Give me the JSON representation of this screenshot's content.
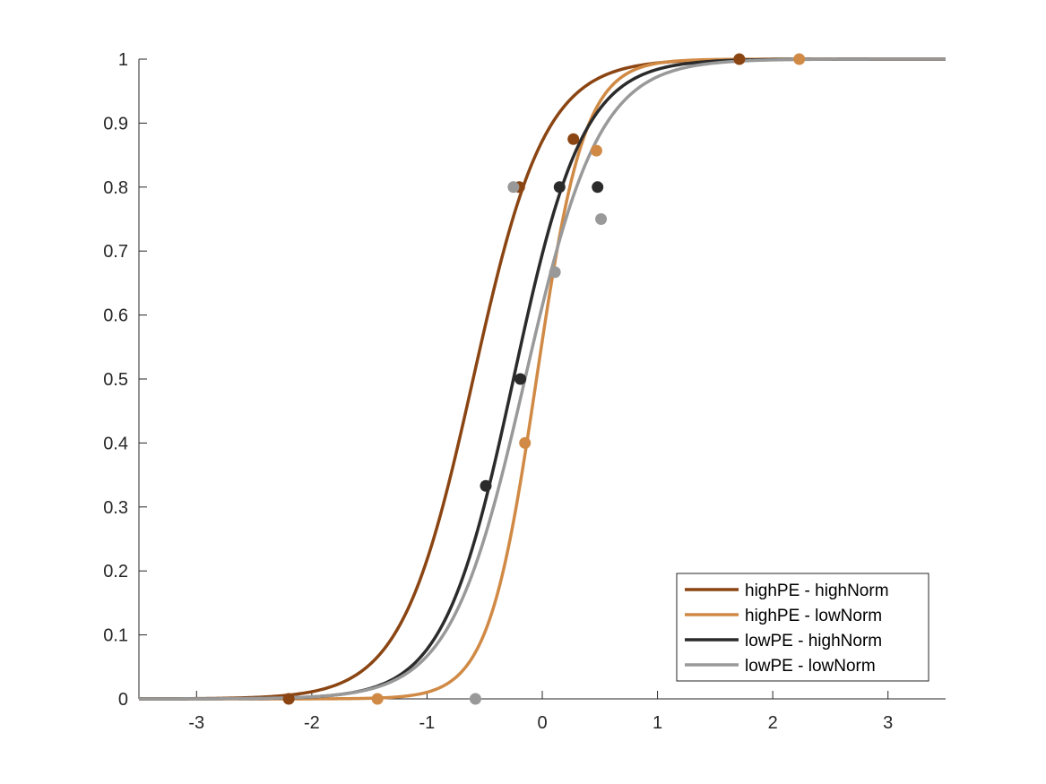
{
  "chart_data": {
    "type": "line",
    "title": "",
    "xlabel": "",
    "ylabel": "",
    "xlim": [
      -3.5,
      3.5
    ],
    "ylim": [
      0,
      1
    ],
    "xticks": [
      -3,
      -2,
      -1,
      0,
      1,
      2,
      3
    ],
    "yticks": [
      0,
      0.1,
      0.2,
      0.3,
      0.4,
      0.5,
      0.6,
      0.7,
      0.8,
      0.9,
      1
    ],
    "xtick_labels": [
      "-3",
      "-2",
      "-1",
      "0",
      "1",
      "2",
      "3"
    ],
    "ytick_labels": [
      "0",
      "0.1",
      "0.2",
      "0.3",
      "0.4",
      "0.5",
      "0.6",
      "0.7",
      "0.8",
      "0.9",
      "1"
    ],
    "grid": false,
    "legend_position": "bottom-right",
    "series": [
      {
        "name": "highPE - highNorm",
        "color": "#8B4513",
        "curve": {
          "midpoint": -0.6,
          "slope": 3.2
        },
        "points": [
          {
            "x": -2.2,
            "y": 0
          },
          {
            "x": -0.2,
            "y": 0.8
          },
          {
            "x": 0.27,
            "y": 0.875
          },
          {
            "x": 1.71,
            "y": 1
          }
        ]
      },
      {
        "name": "highPE - lowNorm",
        "color": "#D08A45",
        "curve": {
          "midpoint": -0.05,
          "slope": 4.8
        },
        "points": [
          {
            "x": -1.43,
            "y": 0
          },
          {
            "x": -0.15,
            "y": 0.4
          },
          {
            "x": 0.47,
            "y": 0.857
          },
          {
            "x": 2.23,
            "y": 1
          }
        ]
      },
      {
        "name": "lowPE - highNorm",
        "color": "#2B2B2B",
        "curve": {
          "midpoint": -0.25,
          "slope": 3.3
        },
        "points": [
          {
            "x": -0.49,
            "y": 0.333
          },
          {
            "x": -0.19,
            "y": 0.5
          },
          {
            "x": 0.15,
            "y": 0.8
          },
          {
            "x": 0.48,
            "y": 0.8
          }
        ]
      },
      {
        "name": "lowPE - lowNorm",
        "color": "#999999",
        "curve": {
          "midpoint": -0.15,
          "slope": 3.1
        },
        "points": [
          {
            "x": -0.58,
            "y": 0
          },
          {
            "x": -0.25,
            "y": 0.8
          },
          {
            "x": 0.11,
            "y": 0.667
          },
          {
            "x": 0.51,
            "y": 0.75
          }
        ]
      }
    ]
  }
}
